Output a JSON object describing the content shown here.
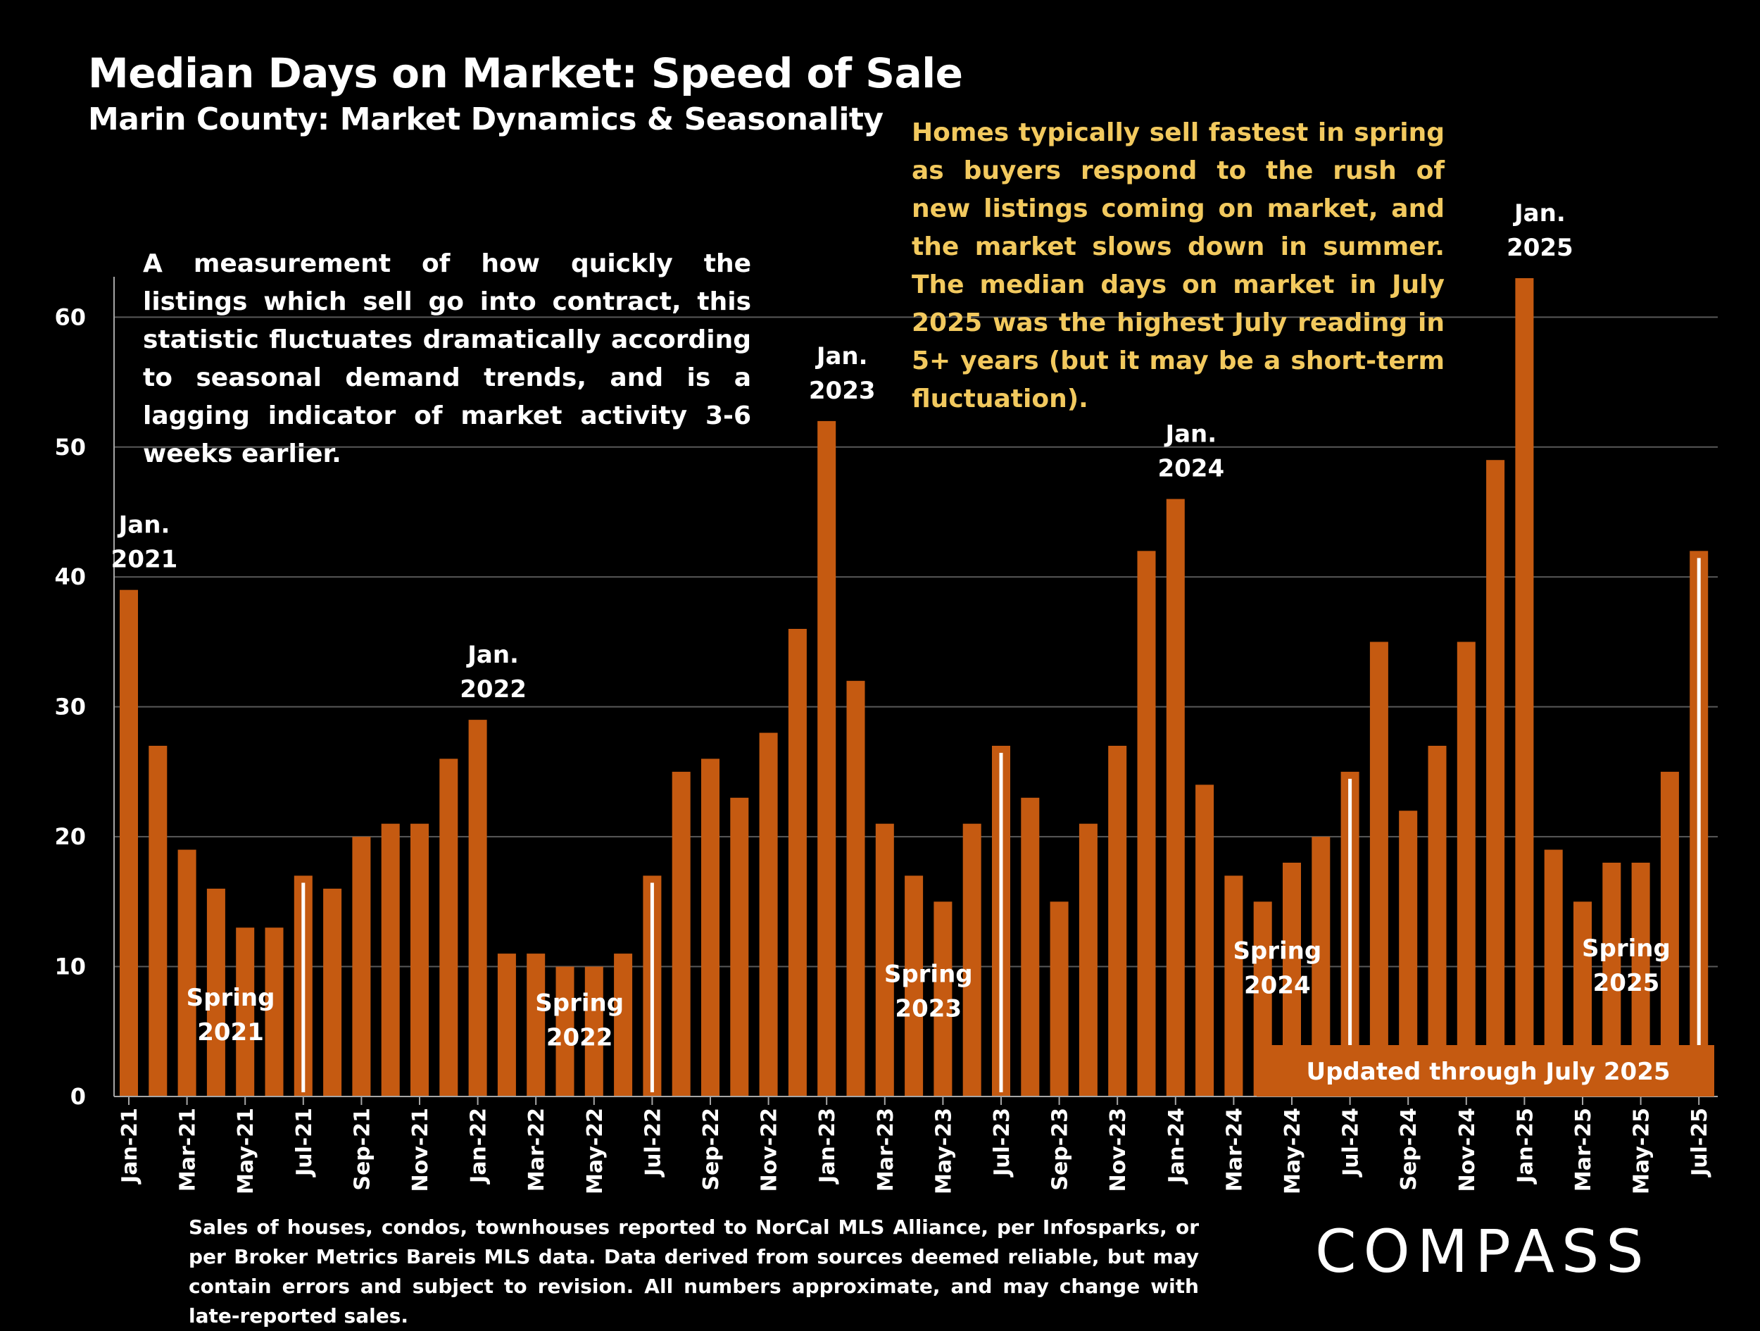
{
  "header": {
    "title": "Median Days on Market:  Speed of Sale",
    "subtitle": "Marin County: Market Dynamics & Seasonality"
  },
  "intro_text": "A measurement of how quickly the listings which sell go into contract, this statistic fluctuates dramatically according to seasonal demand trends, and is a lagging indicator of market activity 3-6 weeks earlier.",
  "callout_text": "Homes typically sell fastest in spring as buyers respond to the rush of new listings coming on market, and the market slows down in summer. The median days on market in July 2025 was the highest July reading in 5+ years (but it may be a short-term fluctuation).",
  "footnote": "Sales of houses, condos, townhouses reported to NorCal MLS Alliance, per Infosparks, or per Broker Metrics Bareis MLS data. Data derived from sources deemed reliable, but may contain errors and subject to revision. All numbers approximate, and may change with late-reported sales.",
  "logo_text": "COMPASS",
  "colors": {
    "bar": "#c55a11",
    "background": "#000000",
    "callout": "#f2c95e",
    "text": "#ffffff",
    "gridline": "#595959"
  },
  "chart_data": {
    "type": "bar",
    "categories": [
      "Jan-21",
      "Feb-21",
      "Mar-21",
      "Apr-21",
      "May-21",
      "Jun-21",
      "Jul-21",
      "Aug-21",
      "Sep-21",
      "Oct-21",
      "Nov-21",
      "Dec-21",
      "Jan-22",
      "Feb-22",
      "Mar-22",
      "Apr-22",
      "May-22",
      "Jun-22",
      "Jul-22",
      "Aug-22",
      "Sep-22",
      "Oct-22",
      "Nov-22",
      "Dec-22",
      "Jan-23",
      "Feb-23",
      "Mar-23",
      "Apr-23",
      "May-23",
      "Jun-23",
      "Jul-23",
      "Aug-23",
      "Sep-23",
      "Oct-23",
      "Nov-23",
      "Dec-23",
      "Jan-24",
      "Feb-24",
      "Mar-24",
      "Apr-24",
      "May-24",
      "Jun-24",
      "Jul-24",
      "Aug-24",
      "Sep-24",
      "Oct-24",
      "Nov-24",
      "Dec-24",
      "Jan-25",
      "Feb-25",
      "Mar-25",
      "Apr-25",
      "May-25",
      "Jun-25",
      "Jul-25"
    ],
    "values": [
      39,
      27,
      19,
      16,
      13,
      13,
      17,
      16,
      20,
      21,
      21,
      26,
      29,
      11,
      11,
      10,
      10,
      11,
      17,
      25,
      26,
      23,
      28,
      36,
      52,
      32,
      21,
      17,
      15,
      21,
      27,
      23,
      15,
      21,
      27,
      42,
      46,
      24,
      17,
      15,
      18,
      20,
      25,
      35,
      22,
      27,
      35,
      49,
      63,
      19,
      15,
      18,
      18,
      25,
      42
    ],
    "tick_labels": [
      "Jan-21",
      "Mar-21",
      "May-21",
      "Jul-21",
      "Sep-21",
      "Nov-21",
      "Jan-22",
      "Mar-22",
      "May-22",
      "Jul-22",
      "Sep-22",
      "Nov-22",
      "Jan-23",
      "Mar-23",
      "May-23",
      "Jul-23",
      "Sep-23",
      "Nov-23",
      "Jan-24",
      "Mar-24",
      "May-24",
      "Jul-24",
      "Sep-24",
      "Nov-24",
      "Jan-25",
      "Mar-25",
      "May-25",
      "Jul-25"
    ],
    "y_ticks": [
      "0",
      "10",
      "20",
      "30",
      "40",
      "50",
      "60"
    ],
    "ylim": [
      0,
      63
    ],
    "grid": true,
    "title": "",
    "xlabel": "",
    "ylabel": "",
    "annotations": {
      "january": [
        {
          "index": 0,
          "line1": "Jan.",
          "line2": "2021"
        },
        {
          "index": 12,
          "line1": "Jan.",
          "line2": "2022"
        },
        {
          "index": 24,
          "line1": "Jan.",
          "line2": "2023"
        },
        {
          "index": 36,
          "line1": "Jan.",
          "line2": "2024"
        },
        {
          "index": 48,
          "line1": "Jan.",
          "line2": "2025"
        }
      ],
      "spring": [
        {
          "index": 3.5,
          "value": 7,
          "line1": "Spring",
          "line2": "2021"
        },
        {
          "index": 15.5,
          "value": 6.6,
          "line1": "Spring",
          "line2": "2022"
        },
        {
          "index": 27.5,
          "value": 8.8,
          "line1": "Spring",
          "line2": "2023"
        },
        {
          "index": 39.5,
          "value": 10.6,
          "line1": "Spring",
          "line2": "2024"
        },
        {
          "index": 51.5,
          "value": 10.8,
          "line1": "Spring",
          "line2": "2025"
        }
      ],
      "july_marker_indices": [
        6,
        18,
        30,
        42,
        54
      ],
      "update_banner": "Updated through July 2025"
    }
  }
}
